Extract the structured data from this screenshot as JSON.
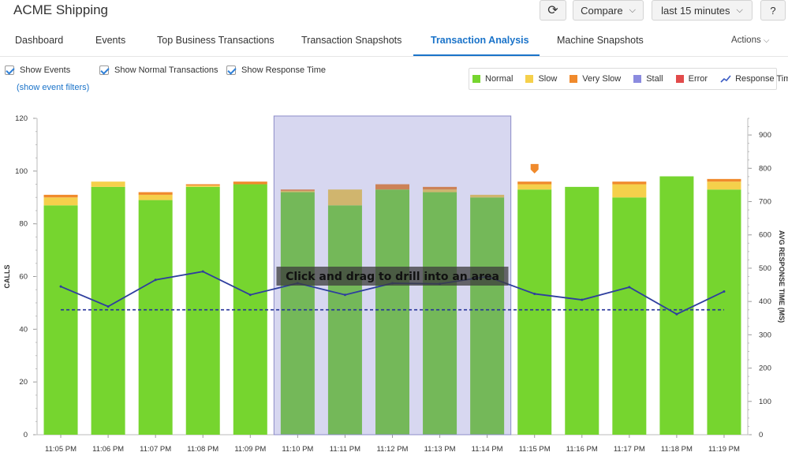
{
  "app": {
    "title": "ACME Shipping"
  },
  "toolbar": {
    "compare_label": "Compare",
    "range_label": "last 15 minutes",
    "help_label": "?"
  },
  "tabs": [
    {
      "label": "Dashboard"
    },
    {
      "label": "Events"
    },
    {
      "label": "Top Business Transactions"
    },
    {
      "label": "Transaction Snapshots"
    },
    {
      "label": "Transaction Analysis",
      "active": true
    },
    {
      "label": "Machine Snapshots"
    }
  ],
  "actions_label": "Actions",
  "options": {
    "show_events": "Show Events",
    "show_normal": "Show Normal Transactions",
    "show_response": "Show Response Time",
    "event_filters": "(show event filters)"
  },
  "legend": [
    {
      "label": "Normal",
      "color": "#76d52f"
    },
    {
      "label": "Slow",
      "color": "#f5d04b"
    },
    {
      "label": "Very Slow",
      "color": "#f08a2c"
    },
    {
      "label": "Stall",
      "color": "#8b8bdf"
    },
    {
      "label": "Error",
      "color": "#e24b4b"
    },
    {
      "label": "Response Time",
      "color": "#3b5cc4"
    }
  ],
  "chart_data": {
    "type": "bar",
    "categories": [
      "11:05 PM",
      "11:06 PM",
      "11:07 PM",
      "11:08 PM",
      "11:09 PM",
      "11:10 PM",
      "11:11 PM",
      "11:12 PM",
      "11:13 PM",
      "11:14 PM",
      "11:15 PM",
      "11:16 PM",
      "11:17 PM",
      "11:18 PM",
      "11:19 PM"
    ],
    "series": [
      {
        "name": "Normal",
        "color": "#76d52f",
        "values": [
          87,
          94,
          89,
          94,
          95,
          92,
          87,
          93,
          92,
          90,
          93,
          94,
          90,
          98,
          93
        ]
      },
      {
        "name": "Slow",
        "color": "#f5d04b",
        "values": [
          3,
          2,
          2,
          0.5,
          0,
          0.5,
          6,
          0,
          1,
          1,
          2,
          0,
          5,
          0,
          3
        ]
      },
      {
        "name": "Very Slow",
        "color": "#f08a2c",
        "values": [
          1,
          0,
          1,
          0.5,
          1,
          0.5,
          0,
          2,
          1,
          0,
          1,
          0,
          1,
          0,
          1
        ]
      }
    ],
    "response_time": {
      "name": "Response Time",
      "color": "#3b5cc4",
      "values": [
        445,
        385,
        465,
        490,
        420,
        455,
        420,
        455,
        453,
        475,
        423,
        405,
        443,
        362,
        430
      ]
    },
    "average_response_time": 375,
    "ylabel": "CALLS",
    "y2label": "AVG RESPONSE TIME (MS)",
    "ylim": [
      0,
      120
    ],
    "y2lim": [
      0,
      950
    ],
    "yticks": [
      0,
      20,
      40,
      60,
      80,
      100,
      120
    ],
    "y2ticks": [
      0,
      100,
      200,
      300,
      400,
      500,
      600,
      700,
      800,
      900
    ],
    "selection": {
      "from": "11:10 PM",
      "to": "11:14 PM"
    },
    "event_marker": {
      "at": "11:15 PM"
    },
    "overlay_text": "Click and drag to drill into an area"
  }
}
